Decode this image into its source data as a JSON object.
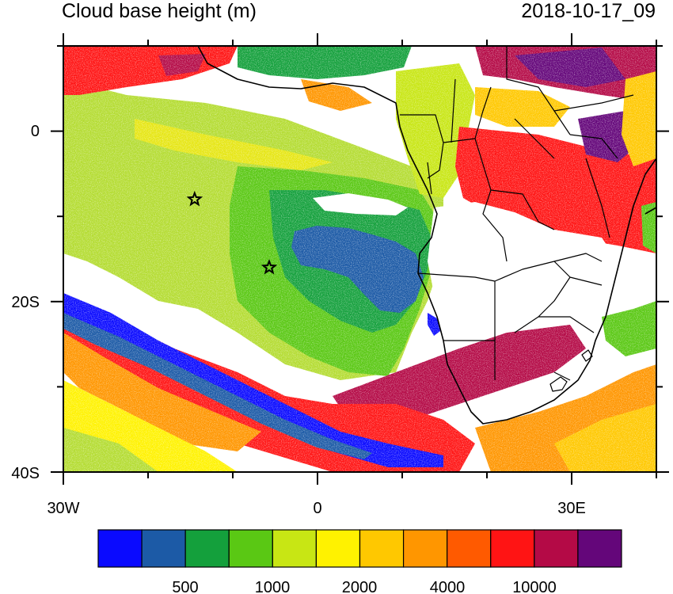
{
  "header": {
    "title": "Cloud base height (m)",
    "timestamp": "2018-10-17_09"
  },
  "map": {
    "lon_range": [
      -30,
      40
    ],
    "lat_range": [
      -40,
      10
    ],
    "lat_labels": [
      "0",
      "20S",
      "40S"
    ],
    "lon_labels": [
      "30W",
      "0",
      "30E"
    ],
    "markers": [
      {
        "name": "star-marker-north",
        "lon": -14.5,
        "lat": -8
      },
      {
        "name": "star-marker-south",
        "lon": -5.7,
        "lat": -16
      }
    ]
  },
  "colorbar": {
    "colors": [
      "#0a0aff",
      "#1c5aa6",
      "#14a03c",
      "#5ac814",
      "#c8e614",
      "#fff200",
      "#ffc800",
      "#ff9600",
      "#ff5a00",
      "#ff1414",
      "#b40a46",
      "#64067a"
    ],
    "labels": [
      "500",
      "1000",
      "2000",
      "4000",
      "10000"
    ]
  }
}
